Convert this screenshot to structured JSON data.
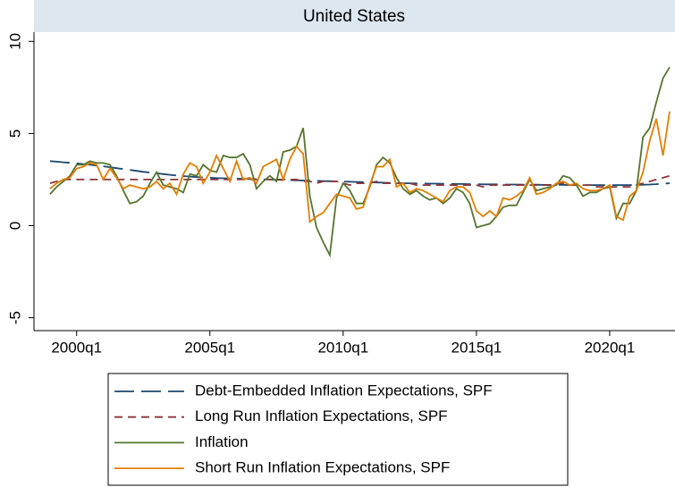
{
  "chart_data": {
    "type": "line",
    "title": "United States",
    "x": [
      1999,
      1999.25,
      1999.5,
      1999.75,
      2000,
      2000.25,
      2000.5,
      2000.75,
      2001,
      2001.25,
      2001.5,
      2001.75,
      2002,
      2002.25,
      2002.5,
      2002.75,
      2003,
      2003.25,
      2003.5,
      2003.75,
      2004,
      2004.25,
      2004.5,
      2004.75,
      2005,
      2005.25,
      2005.5,
      2005.75,
      2006,
      2006.25,
      2006.5,
      2006.75,
      2007,
      2007.25,
      2007.5,
      2007.75,
      2008,
      2008.25,
      2008.5,
      2008.75,
      2009,
      2009.25,
      2009.5,
      2009.75,
      2010,
      2010.25,
      2010.5,
      2010.75,
      2011,
      2011.25,
      2011.5,
      2011.75,
      2012,
      2012.25,
      2012.5,
      2012.75,
      2013,
      2013.25,
      2013.5,
      2013.75,
      2014,
      2014.25,
      2014.5,
      2014.75,
      2015,
      2015.25,
      2015.5,
      2015.75,
      2016,
      2016.25,
      2016.5,
      2016.75,
      2017,
      2017.25,
      2017.5,
      2017.75,
      2018,
      2018.25,
      2018.5,
      2018.75,
      2019,
      2019.25,
      2019.5,
      2019.75,
      2020,
      2020.25,
      2020.5,
      2020.75,
      2021,
      2021.25,
      2021.5,
      2021.75,
      2022,
      2022.25
    ],
    "series": [
      {
        "name": "Debt-Embedded Inflation Expectations, SPF",
        "color": "#1a476f",
        "style": "longdash",
        "values": [
          3.5,
          3.47,
          3.44,
          3.41,
          3.38,
          3.34,
          3.3,
          3.26,
          3.22,
          3.17,
          3.12,
          3.07,
          3.02,
          2.97,
          2.92,
          2.88,
          2.84,
          2.8,
          2.76,
          2.72,
          2.69,
          2.66,
          2.64,
          2.62,
          2.6,
          2.58,
          2.57,
          2.56,
          2.55,
          2.54,
          2.53,
          2.52,
          2.51,
          2.5,
          2.49,
          2.48,
          2.47,
          2.46,
          2.45,
          2.44,
          2.43,
          2.42,
          2.41,
          2.4,
          2.39,
          2.38,
          2.37,
          2.36,
          2.35,
          2.34,
          2.33,
          2.32,
          2.31,
          2.3,
          2.3,
          2.29,
          2.29,
          2.28,
          2.28,
          2.27,
          2.27,
          2.26,
          2.26,
          2.25,
          2.25,
          2.24,
          2.24,
          2.24,
          2.23,
          2.23,
          2.23,
          2.22,
          2.22,
          2.22,
          2.21,
          2.21,
          2.21,
          2.21,
          2.2,
          2.2,
          2.2,
          2.2,
          2.2,
          2.2,
          2.2,
          2.2,
          2.2,
          2.2,
          2.21,
          2.22,
          2.23,
          2.25,
          2.28,
          2.3
        ]
      },
      {
        "name": "Long Run Inflation Expectations, SPF",
        "color": "#90353b",
        "style": "dash",
        "values": [
          2.3,
          2.4,
          2.5,
          2.5,
          2.5,
          2.5,
          2.5,
          2.5,
          2.5,
          2.5,
          2.5,
          2.5,
          2.5,
          2.5,
          2.5,
          2.5,
          2.5,
          2.5,
          2.5,
          2.5,
          2.5,
          2.5,
          2.5,
          2.5,
          2.5,
          2.5,
          2.5,
          2.5,
          2.5,
          2.5,
          2.5,
          2.5,
          2.5,
          2.5,
          2.5,
          2.5,
          2.5,
          2.5,
          2.4,
          2.4,
          2.3,
          2.4,
          2.4,
          2.4,
          2.3,
          2.2,
          2.3,
          2.3,
          2.3,
          2.4,
          2.3,
          2.3,
          2.3,
          2.3,
          2.3,
          2.2,
          2.2,
          2.2,
          2.2,
          2.2,
          2.2,
          2.2,
          2.2,
          2.2,
          2.2,
          2.1,
          2.2,
          2.2,
          2.2,
          2.2,
          2.2,
          2.2,
          2.2,
          2.2,
          2.2,
          2.2,
          2.3,
          2.3,
          2.2,
          2.2,
          2.2,
          2.2,
          2.1,
          2.1,
          2.1,
          2.1,
          2.1,
          2.1,
          2.2,
          2.3,
          2.4,
          2.5,
          2.6,
          2.7
        ]
      },
      {
        "name": "Inflation",
        "color": "#55752f",
        "style": "solid",
        "values": [
          1.7,
          2.1,
          2.4,
          2.7,
          3.3,
          3.3,
          3.5,
          3.4,
          3.4,
          3.3,
          2.7,
          1.9,
          1.2,
          1.3,
          1.6,
          2.3,
          2.9,
          2.2,
          2.1,
          2.0,
          1.8,
          2.8,
          2.7,
          3.3,
          3.0,
          2.9,
          3.8,
          3.7,
          3.7,
          3.9,
          3.3,
          2.0,
          2.4,
          2.7,
          2.4,
          4.0,
          4.1,
          4.3,
          5.3,
          1.6,
          -0.1,
          -0.9,
          -1.6,
          1.5,
          2.3,
          1.9,
          1.2,
          1.2,
          2.1,
          3.3,
          3.7,
          3.4,
          2.6,
          2.0,
          1.7,
          1.9,
          1.6,
          1.4,
          1.5,
          1.2,
          1.5,
          2.0,
          1.8,
          1.2,
          -0.1,
          0.0,
          0.1,
          0.5,
          1.0,
          1.1,
          1.1,
          1.8,
          2.5,
          1.9,
          2.0,
          2.1,
          2.2,
          2.7,
          2.6,
          2.2,
          1.6,
          1.8,
          1.8,
          2.0,
          2.1,
          0.4,
          1.2,
          1.2,
          1.9,
          4.8,
          5.3,
          6.7,
          8.0,
          8.6
        ]
      },
      {
        "name": "Short Run Inflation Expectations, SPF",
        "color": "#e37e00",
        "style": "solid",
        "values": [
          2.0,
          2.3,
          2.5,
          2.6,
          3.1,
          3.2,
          3.4,
          3.3,
          2.5,
          3.1,
          2.6,
          2.0,
          2.2,
          2.1,
          2.0,
          2.1,
          2.4,
          2.0,
          2.3,
          1.7,
          2.8,
          3.4,
          3.2,
          2.3,
          2.9,
          3.8,
          3.1,
          2.4,
          3.5,
          2.5,
          2.6,
          2.3,
          3.2,
          3.4,
          3.6,
          2.5,
          3.6,
          4.3,
          3.9,
          0.2,
          0.5,
          0.7,
          1.2,
          1.7,
          1.6,
          1.5,
          0.9,
          1.0,
          2.2,
          3.2,
          3.2,
          3.6,
          2.1,
          2.3,
          1.8,
          2.0,
          1.9,
          1.7,
          1.5,
          1.3,
          1.9,
          2.1,
          2.1,
          1.8,
          0.8,
          0.5,
          0.8,
          0.5,
          1.5,
          1.4,
          1.6,
          1.9,
          2.6,
          1.7,
          1.8,
          2.0,
          2.3,
          2.4,
          2.2,
          2.3,
          2.0,
          1.9,
          1.9,
          2.0,
          2.2,
          0.5,
          0.3,
          1.6,
          1.9,
          2.9,
          4.6,
          5.8,
          3.8,
          6.2
        ]
      }
    ],
    "xlim": [
      1998.4,
      2022.45
    ],
    "xticks": [
      {
        "value": 2000,
        "label": "2000q1"
      },
      {
        "value": 2005,
        "label": "2005q1"
      },
      {
        "value": 2010,
        "label": "2010q1"
      },
      {
        "value": 2015,
        "label": "2015q1"
      },
      {
        "value": 2020,
        "label": "2020q1"
      }
    ],
    "ylim": [
      -5.7,
      10.5
    ],
    "yticks": [
      -5,
      0,
      5,
      10
    ],
    "legend": "bottom"
  }
}
